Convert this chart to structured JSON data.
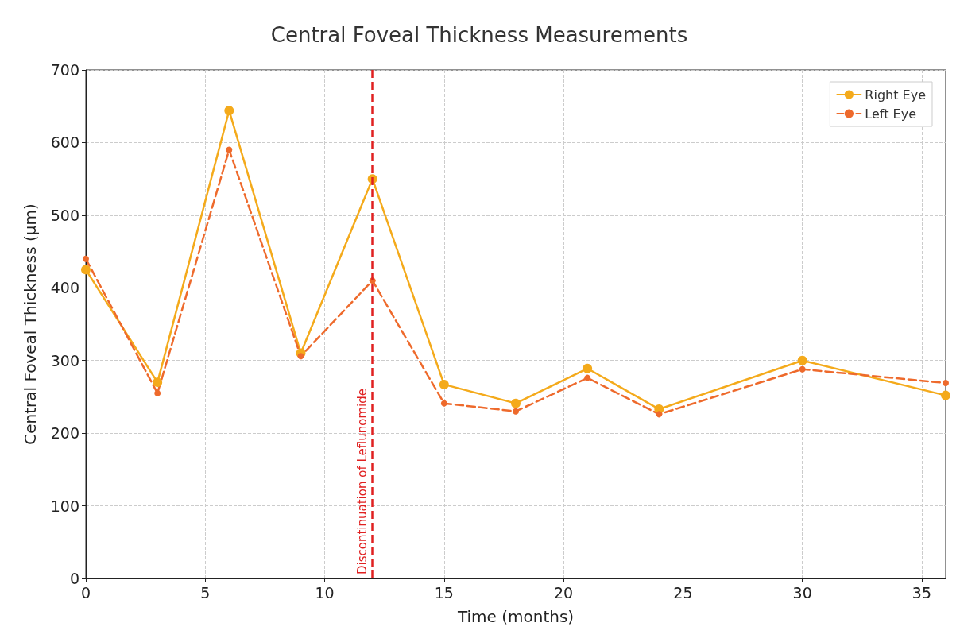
{
  "chart_data": {
    "type": "line",
    "title": "Central Foveal Thickness Measurements",
    "xlabel": "Time (months)",
    "ylabel": "Central Foveal Thickness (μm)",
    "x": [
      0,
      3,
      6,
      9,
      12,
      15,
      18,
      21,
      24,
      30,
      36
    ],
    "series": [
      {
        "name": "Right Eye",
        "color": "#f4aa1b",
        "line_style": "solid",
        "values": [
          425,
          270,
          644,
          310,
          550,
          267,
          241,
          289,
          233,
          300,
          252
        ]
      },
      {
        "name": "Left Eye",
        "color": "#ee6a2c",
        "line_style": "dashed",
        "values": [
          440,
          255,
          590,
          306,
          410,
          241,
          230,
          276,
          226,
          288,
          269
        ]
      }
    ],
    "xlim": [
      0,
      36
    ],
    "xticks": [
      0,
      5,
      10,
      15,
      20,
      25,
      30,
      35
    ],
    "ylim": [
      0,
      700
    ],
    "yticks": [
      0,
      100,
      200,
      300,
      400,
      500,
      600,
      700
    ],
    "ref_lines": [
      {
        "axis": "x",
        "value": 12,
        "label": "Discontinuation of Leflunomide",
        "color": "#e02020",
        "line_style": "dashed"
      }
    ],
    "grid": true,
    "legend": "top right",
    "marker": "circle"
  }
}
